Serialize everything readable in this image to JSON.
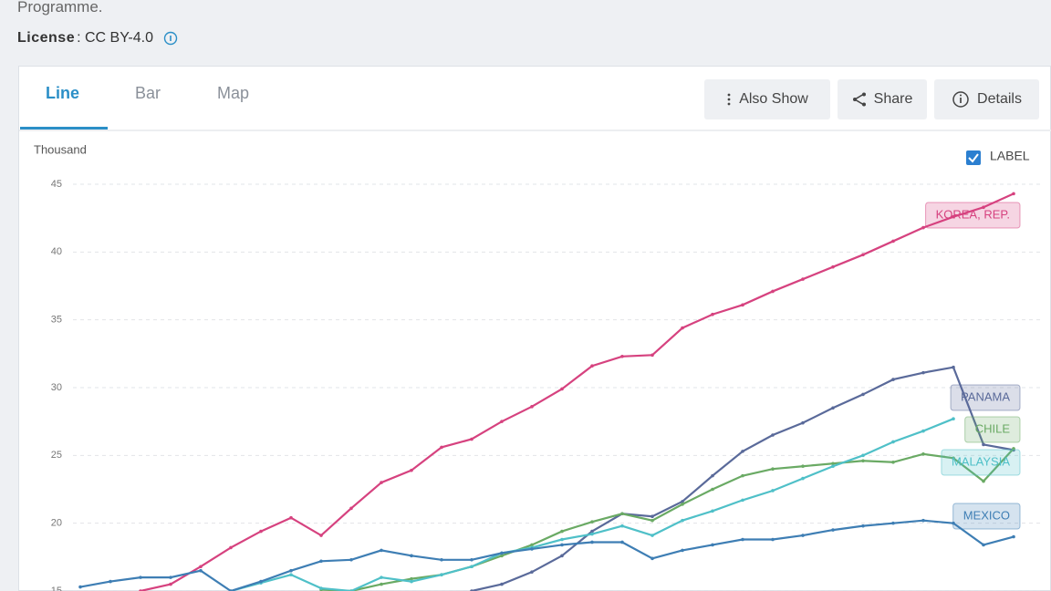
{
  "header": {
    "intro": "Programme.",
    "license_label": "License",
    "license_value": ": CC BY-4.0"
  },
  "tabs": [
    "Line",
    "Bar",
    "Map"
  ],
  "actions": [
    "Also Show",
    "Share",
    "Details"
  ],
  "label_toggle": "LABEL",
  "chart_data": {
    "type": "line",
    "y_label": "Thousand",
    "ylim": [
      15,
      45
    ],
    "yticks": [
      15,
      20,
      25,
      30,
      35,
      40,
      45
    ],
    "grid": true,
    "series": [
      {
        "name": "KOREA, REP.",
        "color": "#d6427f",
        "values": [
          null,
          null,
          15.0,
          15.5,
          16.8,
          18.2,
          19.4,
          20.4,
          19.1,
          21.1,
          23.0,
          23.9,
          25.6,
          26.2,
          27.5,
          28.6,
          29.9,
          31.6,
          32.3,
          32.4,
          34.4,
          35.4,
          36.1,
          37.1,
          38.0,
          38.9,
          39.8,
          40.8,
          41.8,
          42.6,
          43.3,
          44.3
        ]
      },
      {
        "name": "PANAMA",
        "color": "#5a6a9a",
        "values": [
          null,
          null,
          null,
          null,
          null,
          null,
          null,
          null,
          null,
          null,
          null,
          null,
          null,
          15.0,
          15.5,
          16.4,
          17.6,
          19.4,
          20.7,
          20.5,
          21.6,
          23.5,
          25.3,
          26.5,
          27.4,
          28.5,
          29.5,
          30.6,
          31.1,
          31.5,
          25.8,
          25.4
        ]
      },
      {
        "name": "CHILE",
        "color": "#6aaa64",
        "values": [
          null,
          null,
          null,
          null,
          null,
          null,
          null,
          null,
          15.1,
          15.0,
          15.5,
          15.9,
          16.2,
          16.8,
          17.6,
          18.4,
          19.4,
          20.1,
          20.7,
          20.2,
          21.4,
          22.5,
          23.5,
          24.0,
          24.2,
          24.4,
          24.6,
          24.5,
          25.1,
          24.8,
          23.1,
          25.5
        ]
      },
      {
        "name": "MALAYSIA",
        "color": "#4fc0c8",
        "values": [
          null,
          null,
          null,
          null,
          null,
          15.0,
          15.6,
          16.2,
          15.2,
          15.0,
          16.0,
          15.7,
          16.2,
          16.8,
          17.8,
          18.2,
          18.8,
          19.2,
          19.8,
          19.1,
          20.2,
          20.9,
          21.7,
          22.4,
          23.3,
          24.2,
          25.0,
          26.0,
          26.8,
          27.7,
          null,
          null
        ]
      },
      {
        "name": "MEXICO",
        "color": "#3e7eb4",
        "values": [
          15.3,
          15.7,
          16.0,
          16.0,
          16.5,
          15.0,
          15.7,
          16.5,
          17.2,
          17.3,
          18.0,
          17.6,
          17.3,
          17.3,
          17.8,
          18.1,
          18.4,
          18.6,
          18.6,
          17.4,
          18.0,
          18.4,
          18.8,
          18.8,
          19.1,
          19.5,
          19.8,
          20.0,
          20.2,
          20.0,
          18.4,
          19.0
        ]
      }
    ]
  }
}
